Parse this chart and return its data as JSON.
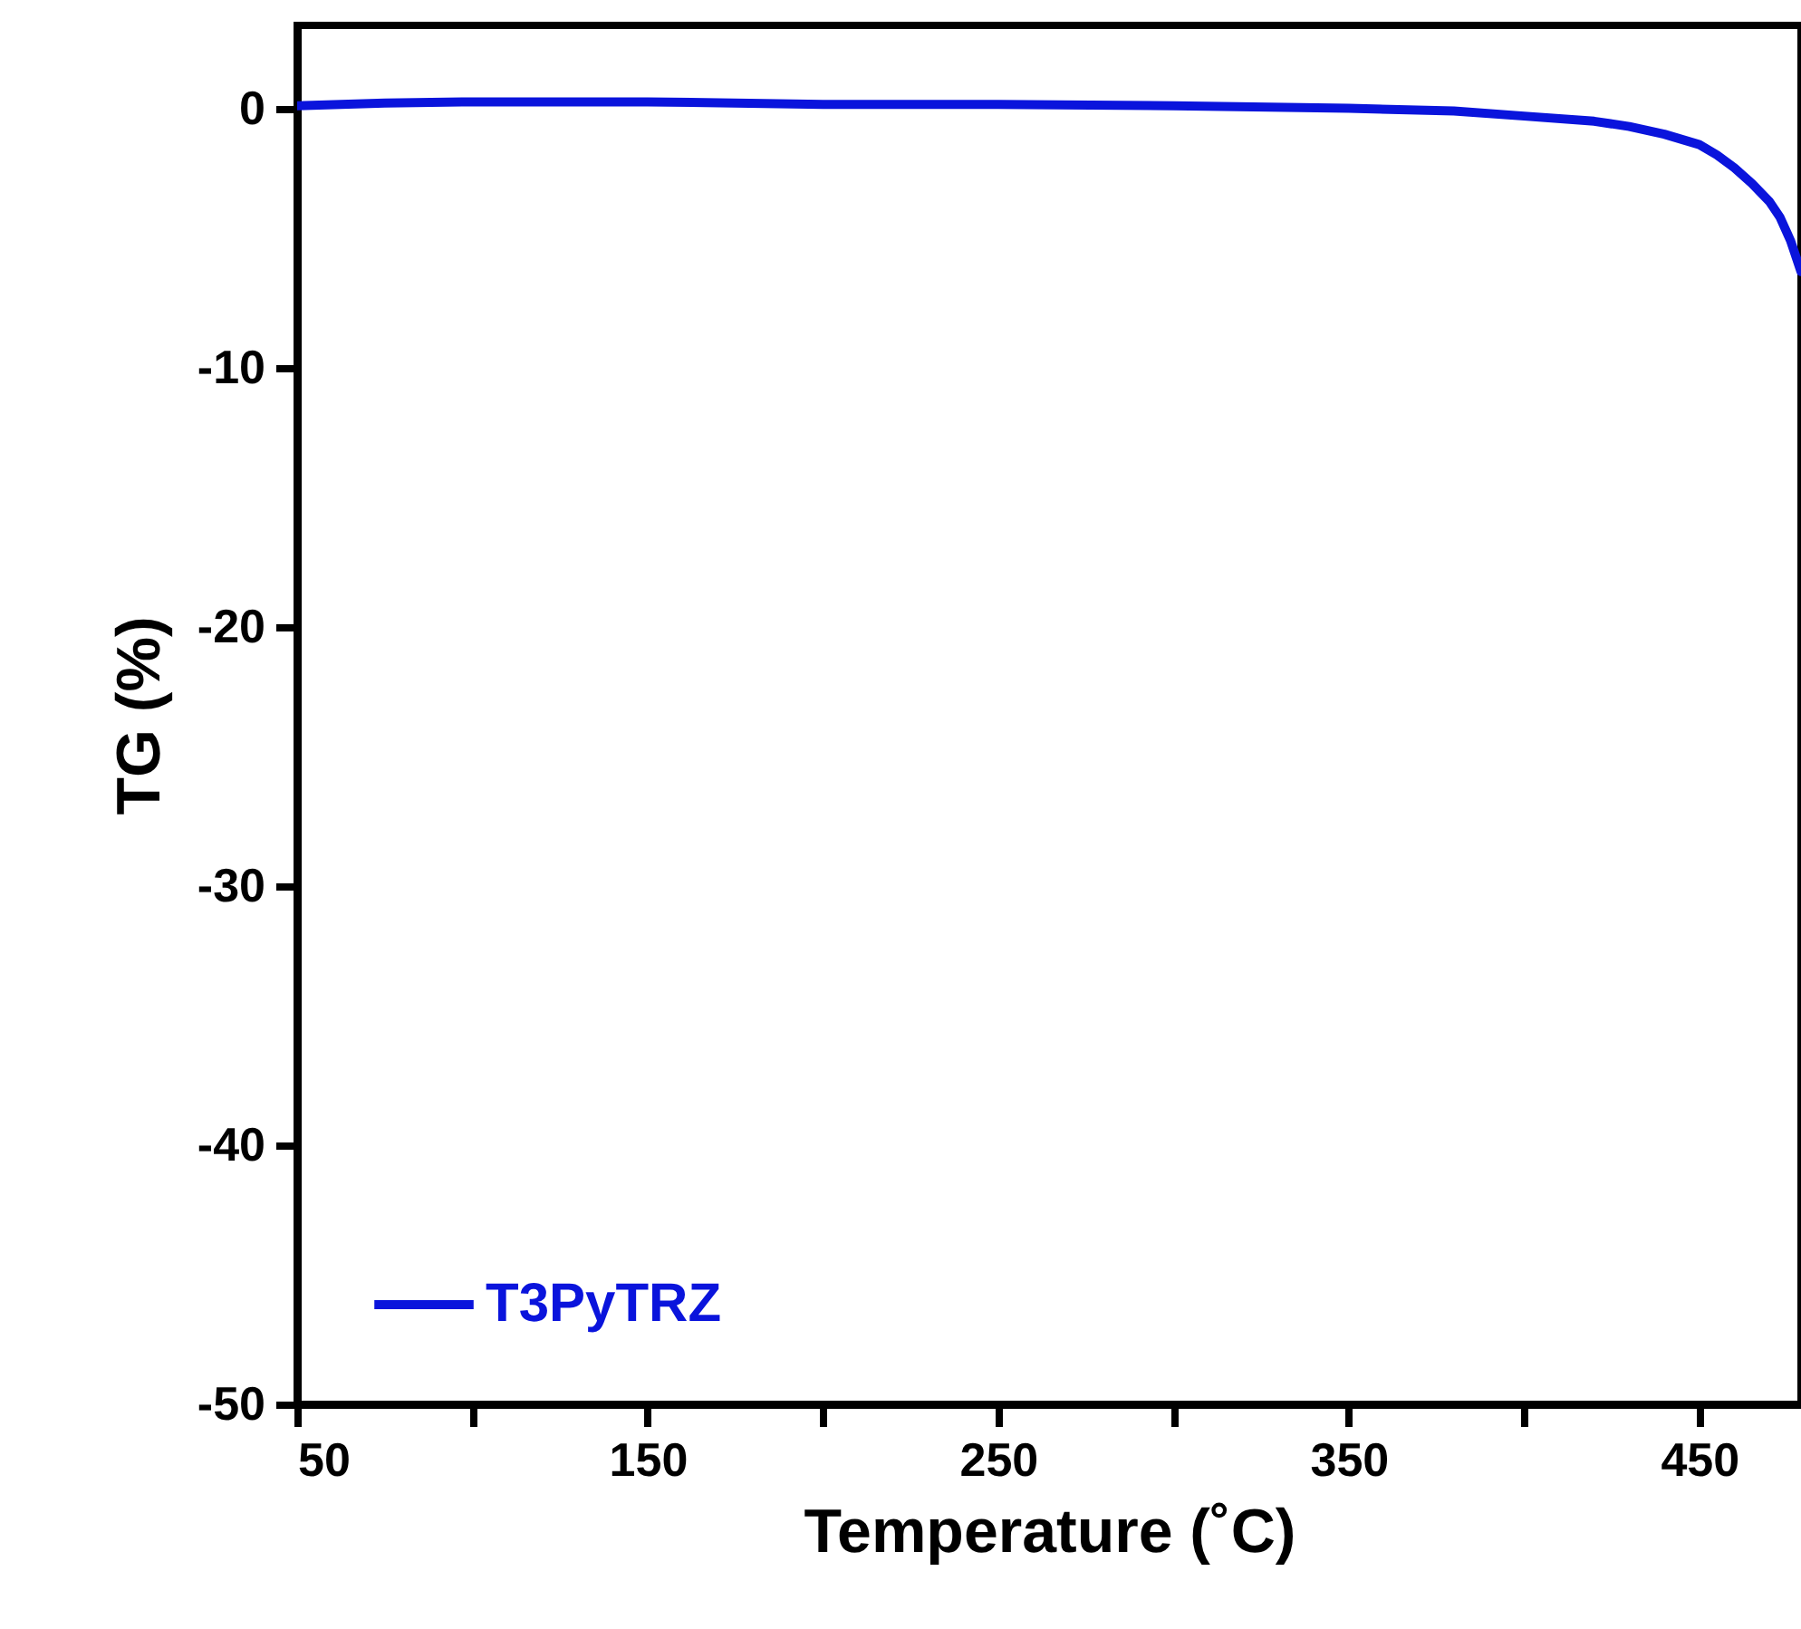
{
  "chart_data": {
    "type": "line",
    "xlabel": "Temperature (˚C)",
    "ylabel": "TG (%)",
    "legend": "bottom left",
    "grid": false,
    "marker": "none",
    "line_style": "solid",
    "xlim": [
      50,
      479
    ],
    "ylim": [
      -50,
      3.2
    ],
    "xticks": [
      50,
      {
        "value": 100,
        "label": null
      },
      150,
      {
        "value": 200,
        "label": null
      },
      250,
      {
        "value": 300,
        "label": null
      },
      350,
      {
        "value": 400,
        "label": null
      },
      450
    ],
    "yticks": [
      0,
      -10,
      -20,
      -30,
      -40,
      -50
    ],
    "series": [
      {
        "name": "T3PyTRZ",
        "color": "#0a14dc",
        "x": [
          50,
          75,
          100,
          150,
          200,
          250,
          300,
          350,
          380,
          400,
          420,
          430,
          440,
          450,
          455,
          460,
          465,
          470,
          473,
          476,
          479
        ],
        "values": [
          0.1,
          0.2,
          0.25,
          0.25,
          0.15,
          0.15,
          0.1,
          0,
          -0.1,
          -0.3,
          -0.5,
          -0.7,
          -1.0,
          -1.4,
          -1.8,
          -2.3,
          -2.9,
          -3.6,
          -4.2,
          -5.1,
          -6.3
        ]
      }
    ]
  }
}
